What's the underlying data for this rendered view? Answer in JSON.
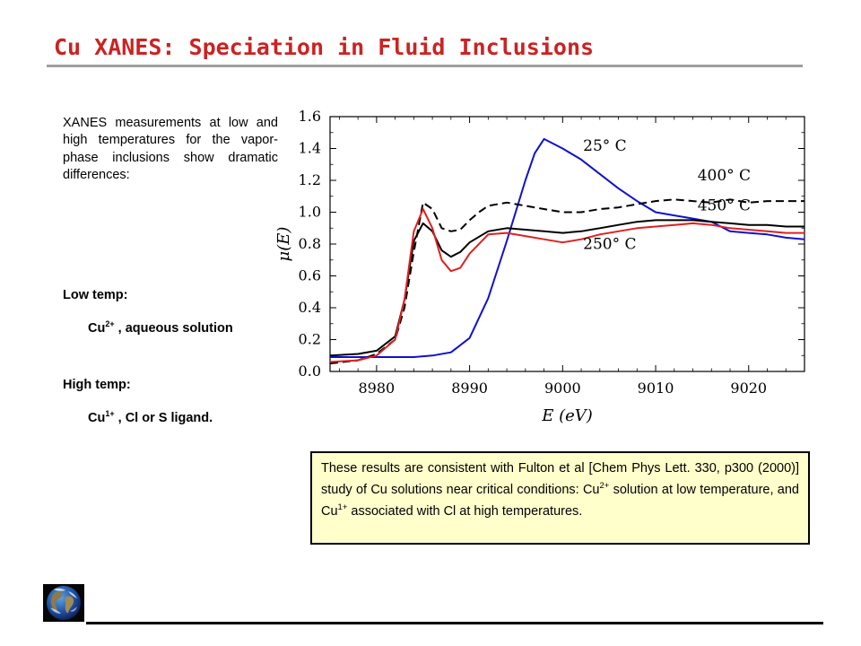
{
  "slide": {
    "title": "Cu XANES: Speciation in Fluid Inclusions",
    "intro": "XANES measurements at low and high temperatures for the vapor-phase inclusions show dramatic differences:",
    "low_label": "Low temp:",
    "low_ion": "Cu",
    "low_charge": "2+",
    "low_rest": " , aqueous solution",
    "high_label": "High temp:",
    "high_ion": "Cu",
    "high_charge": "1+",
    "high_rest": " ,  Cl or S ligand.",
    "note_parts": {
      "p1": "These results are consistent with Fulton et al [Chem Phys Lett. 330, p300 (2000)]  study of Cu solutions near critical conditions: Cu",
      "s1": "2+",
      "p2": " solution at low temperature, and Cu",
      "s2": "1+",
      "p3": " associated with Cl at high temperatures."
    }
  },
  "chart_data": {
    "type": "line",
    "xlabel": "E (eV)",
    "ylabel": "μ(E)",
    "xlim": [
      8975,
      9026
    ],
    "ylim": [
      0.0,
      1.6
    ],
    "xticks": [
      8980,
      8990,
      9000,
      9010,
      9020
    ],
    "yticks": [
      "0.0",
      "0.2",
      "0.4",
      "0.6",
      "0.8",
      "1.0",
      "1.2",
      "1.4",
      "1.6"
    ],
    "grid": false,
    "series": [
      {
        "name": "25° C",
        "color": "#1010d0",
        "dash": "",
        "x": [
          8975,
          8978,
          8980,
          8982,
          8984,
          8986,
          8988,
          8990,
          8992,
          8994,
          8996,
          8997,
          8998,
          9000,
          9002,
          9004,
          9006,
          9008,
          9010,
          9012,
          9014,
          9016,
          9018,
          9020,
          9022,
          9024,
          9026
        ],
        "y": [
          0.09,
          0.09,
          0.09,
          0.09,
          0.09,
          0.1,
          0.12,
          0.21,
          0.46,
          0.82,
          1.2,
          1.37,
          1.46,
          1.4,
          1.33,
          1.24,
          1.15,
          1.07,
          1.0,
          0.98,
          0.96,
          0.94,
          0.88,
          0.87,
          0.86,
          0.84,
          0.83
        ]
      },
      {
        "name": "400° C",
        "color": "#000000",
        "dash": "9,5",
        "x": [
          8975,
          8978,
          8980,
          8982,
          8983,
          8984,
          8985,
          8986,
          8987,
          8988,
          8989,
          8990,
          8991,
          8992,
          8994,
          8996,
          8998,
          9000,
          9002,
          9004,
          9006,
          9008,
          9010,
          9012,
          9014,
          9016,
          9018,
          9020,
          9022,
          9024,
          9026
        ],
        "y": [
          0.05,
          0.07,
          0.11,
          0.2,
          0.4,
          0.75,
          1.06,
          1.02,
          0.9,
          0.88,
          0.89,
          0.95,
          1.0,
          1.04,
          1.06,
          1.04,
          1.02,
          1.0,
          1.0,
          1.02,
          1.03,
          1.05,
          1.07,
          1.08,
          1.07,
          1.06,
          1.08,
          1.06,
          1.07,
          1.07,
          1.07
        ]
      },
      {
        "name": "450° C",
        "color": "#000000",
        "dash": "",
        "x": [
          8975,
          8978,
          8980,
          8982,
          8983,
          8984,
          8985,
          8986,
          8987,
          8988,
          8989,
          8990,
          8992,
          8994,
          8996,
          8998,
          9000,
          9002,
          9004,
          9006,
          9008,
          9010,
          9012,
          9014,
          9016,
          9018,
          9020,
          9022,
          9024,
          9026
        ],
        "y": [
          0.1,
          0.11,
          0.13,
          0.22,
          0.45,
          0.82,
          0.93,
          0.88,
          0.76,
          0.72,
          0.75,
          0.81,
          0.88,
          0.9,
          0.89,
          0.88,
          0.87,
          0.88,
          0.9,
          0.92,
          0.94,
          0.95,
          0.95,
          0.95,
          0.94,
          0.93,
          0.92,
          0.92,
          0.91,
          0.91
        ]
      },
      {
        "name": "250° C",
        "color": "#e02020",
        "dash": "",
        "x": [
          8975,
          8978,
          8980,
          8982,
          8983,
          8984,
          8985,
          8986,
          8987,
          8988,
          8989,
          8990,
          8992,
          8994,
          8996,
          8998,
          9000,
          9002,
          9004,
          9006,
          9008,
          9010,
          9012,
          9014,
          9016,
          9018,
          9020,
          9022,
          9024,
          9026
        ],
        "y": [
          0.06,
          0.07,
          0.1,
          0.2,
          0.45,
          0.88,
          1.02,
          0.9,
          0.7,
          0.63,
          0.65,
          0.74,
          0.86,
          0.87,
          0.85,
          0.83,
          0.81,
          0.83,
          0.86,
          0.88,
          0.9,
          0.91,
          0.92,
          0.93,
          0.92,
          0.9,
          0.89,
          0.88,
          0.87,
          0.87
        ]
      }
    ],
    "annotations": [
      {
        "text": "25° C",
        "x": 9002.2,
        "y": 1.385
      },
      {
        "text": "400° C",
        "x": 9014.5,
        "y": 1.2
      },
      {
        "text": "450° C",
        "x": 9014.5,
        "y": 1.01
      },
      {
        "text": "250° C",
        "x": 9002.2,
        "y": 0.77
      }
    ]
  }
}
